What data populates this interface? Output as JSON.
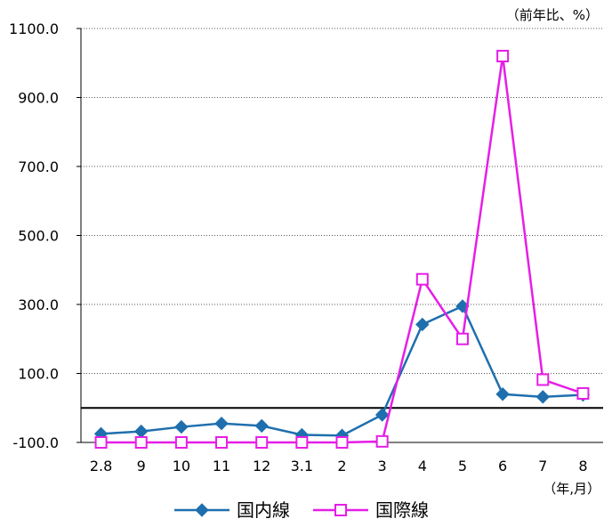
{
  "chart_data": {
    "type": "line",
    "unit_label": "（前年比、%）",
    "x_unit_label": "（年,月）",
    "categories": [
      "2.8",
      "9",
      "10",
      "11",
      "12",
      "3.1",
      "2",
      "3",
      "4",
      "5",
      "6",
      "7",
      "8"
    ],
    "series": [
      {
        "name": "国内線",
        "color": "#1f6fae",
        "marker": "diamond",
        "values": [
          -75,
          -68,
          -55,
          -45,
          -52,
          -78,
          -80,
          -20,
          242,
          295,
          40,
          32,
          38
        ]
      },
      {
        "name": "国際線",
        "color": "#e61ee6",
        "marker": "square-open",
        "values": [
          -100,
          -100,
          -100,
          -100,
          -100,
          -100,
          -100,
          -97,
          373,
          200,
          1020,
          82,
          42
        ]
      }
    ],
    "ylim": [
      -100,
      1100
    ],
    "yticks": [
      "-100.0",
      "100.0",
      "300.0",
      "500.0",
      "700.0",
      "900.0",
      "1100.0"
    ],
    "ytick_values": [
      -100,
      100,
      300,
      500,
      700,
      900,
      1100
    ],
    "grid": true,
    "zero_line": true,
    "legend_position": "bottom"
  }
}
